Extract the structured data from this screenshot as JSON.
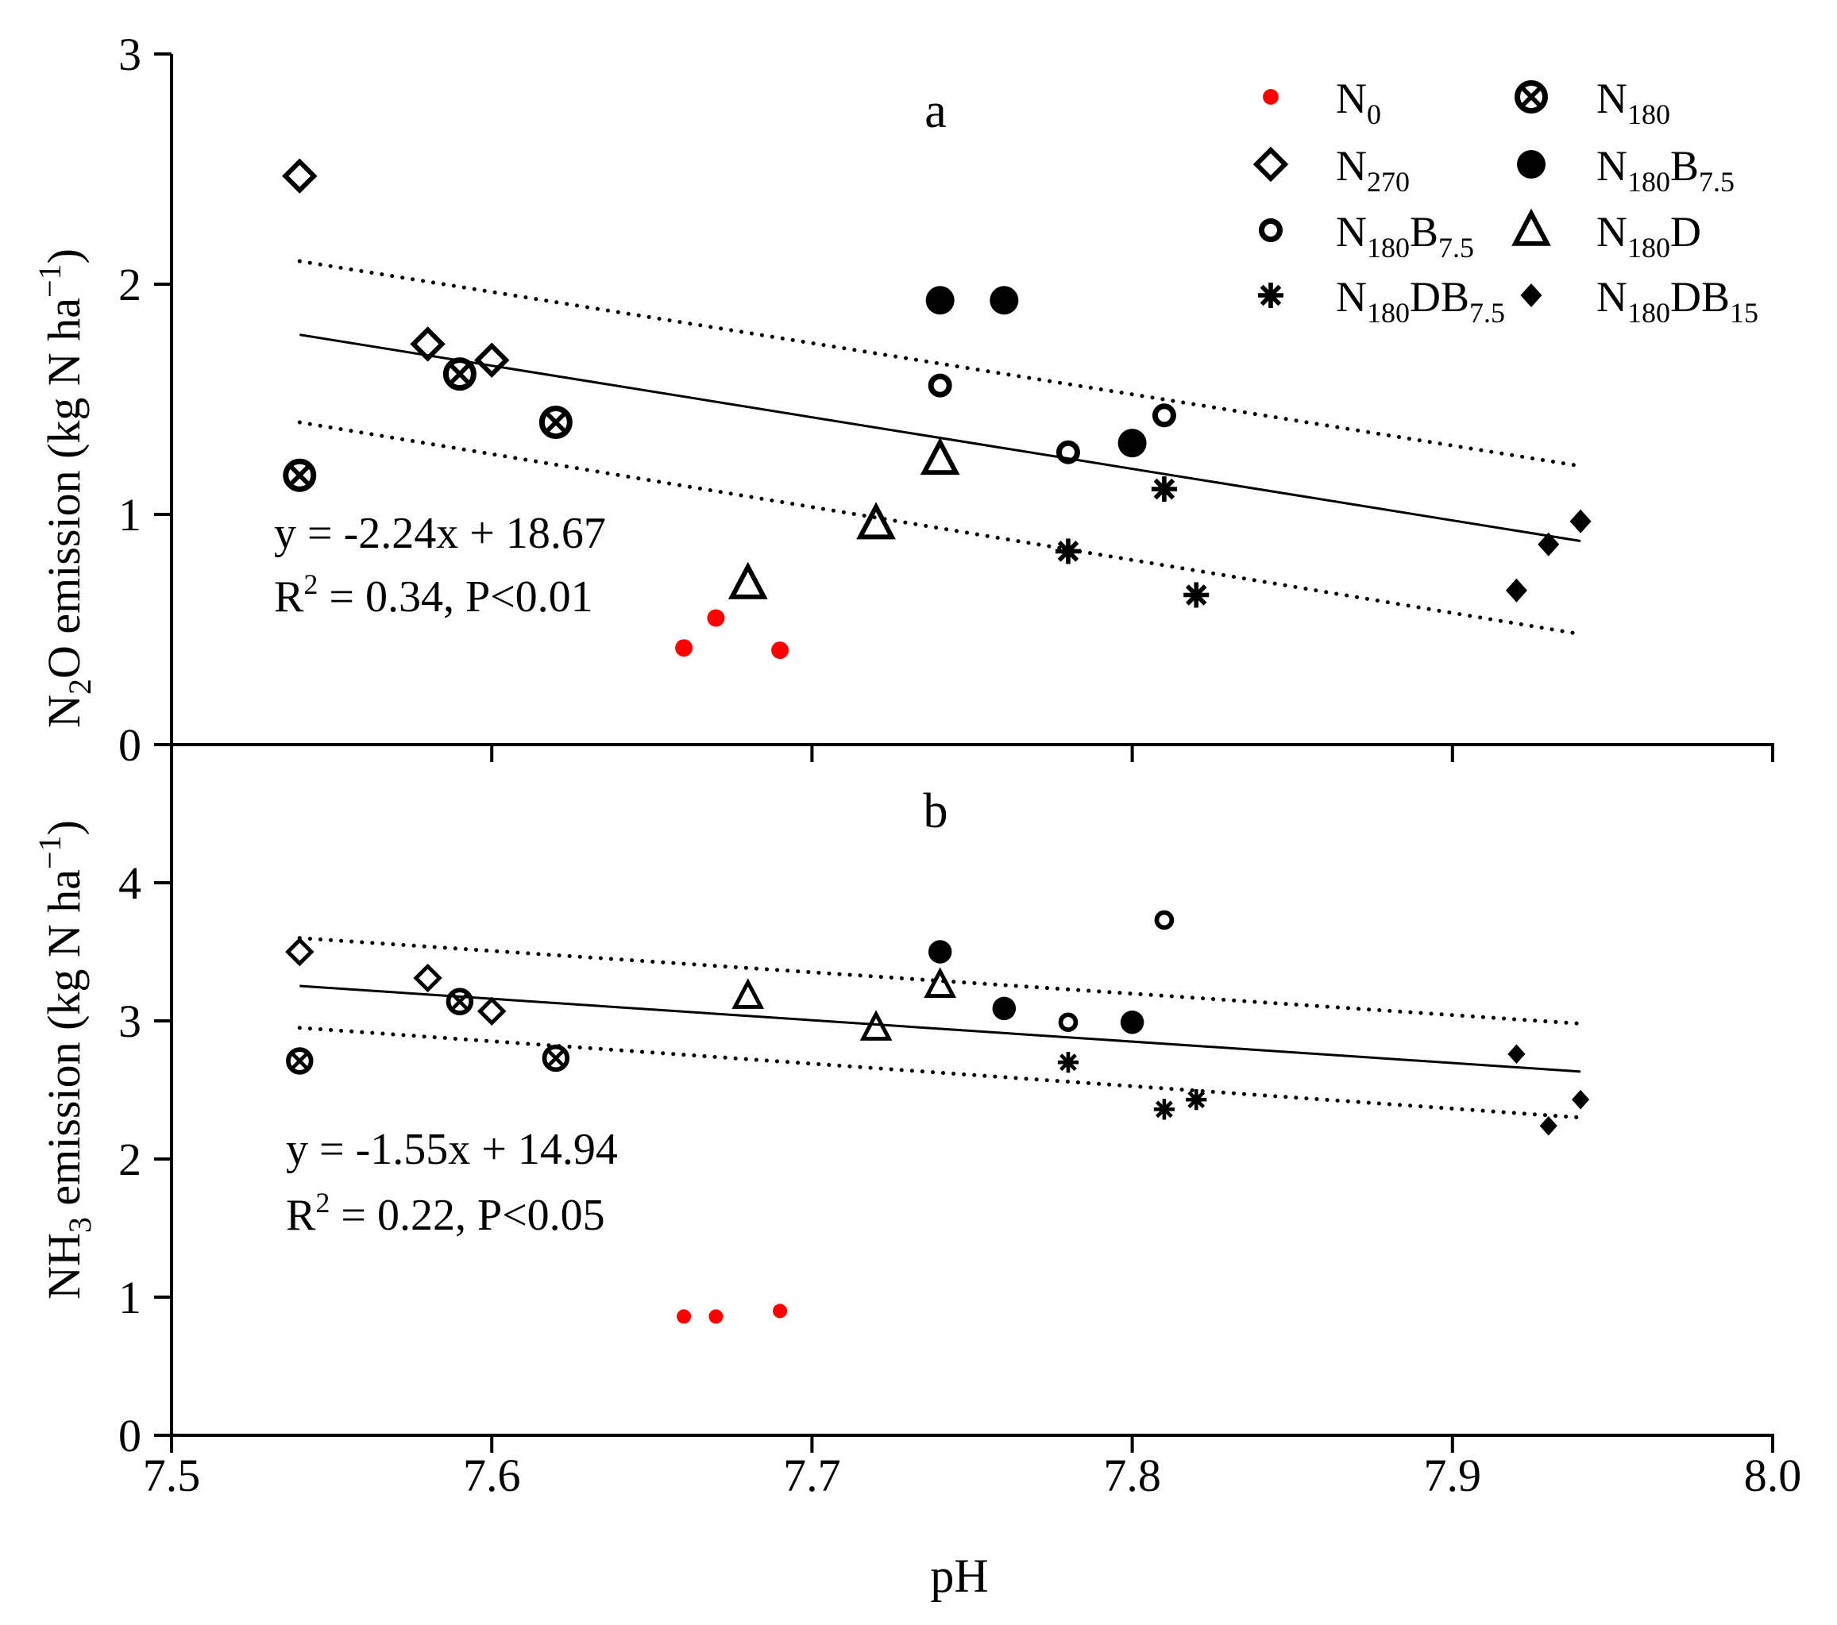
{
  "figure": {
    "xlabel": "pH",
    "x_ticks": [
      "7.5",
      "7.6",
      "7.7",
      "7.8",
      "7.9",
      "8.0"
    ]
  },
  "legend": {
    "entries": [
      {
        "key": "N0",
        "base": "N",
        "sub": "0",
        "base2": "",
        "sub2": "",
        "marker": "small-dot",
        "color": "#ff0000"
      },
      {
        "key": "N180",
        "base": "N",
        "sub": "180",
        "base2": "",
        "sub2": "",
        "marker": "circle-x",
        "color": "#000000"
      },
      {
        "key": "N270",
        "base": "N",
        "sub": "270",
        "base2": "",
        "sub2": "",
        "marker": "open-diamond",
        "color": "#000000"
      },
      {
        "key": "N180B7.5-filled",
        "base": "N",
        "sub": "180",
        "base2": "B",
        "sub2": "7.5",
        "marker": "filled-circle",
        "color": "#000000"
      },
      {
        "key": "N180B7.5-open",
        "base": "N",
        "sub": "180",
        "base2": "B",
        "sub2": "7.5",
        "marker": "open-circle",
        "color": "#000000"
      },
      {
        "key": "N180D",
        "base": "N",
        "sub": "180",
        "base2": "D",
        "sub2": "",
        "marker": "open-triangle",
        "color": "#000000"
      },
      {
        "key": "N180DB7.5",
        "base": "N",
        "sub": "180",
        "base2": "DB",
        "sub2": "7.5",
        "marker": "asterisk",
        "color": "#000000"
      },
      {
        "key": "N180DB15",
        "base": "N",
        "sub": "180",
        "base2": "DB",
        "sub2": "15",
        "marker": "filled-diamond",
        "color": "#000000"
      }
    ]
  },
  "chart_data": [
    {
      "panel_label": "a",
      "type": "scatter",
      "ylabel": {
        "pre": "N",
        "sub": "2",
        "mid": "O emission (kg N ha",
        "sup": "−1",
        "post": ")"
      },
      "xlim": [
        7.5,
        8.0
      ],
      "ylim": [
        0,
        3
      ],
      "y_ticks": [
        "0",
        "1",
        "2",
        "3"
      ],
      "equation": "y = -2.24x + 18.67",
      "stats": {
        "pre": "R",
        "sup": "2",
        "post": " = 0.34, P<0.01"
      },
      "regression": {
        "slope": -2.24,
        "intercept": 18.67,
        "x_range": [
          7.54,
          7.94
        ]
      },
      "confidence_band": {
        "upper": [
          [
            7.54,
            2.1
          ],
          [
            7.94,
            1.21
          ]
        ],
        "lower": [
          [
            7.54,
            1.4
          ],
          [
            7.94,
            0.48
          ]
        ]
      },
      "series": [
        {
          "name": "N0",
          "marker": "small-dot",
          "color": "#ff0000",
          "points": [
            [
              7.66,
              0.42
            ],
            [
              7.67,
              0.55
            ],
            [
              7.69,
              0.41
            ]
          ]
        },
        {
          "name": "N270",
          "marker": "open-diamond",
          "color": "#000000",
          "points": [
            [
              7.54,
              2.47
            ],
            [
              7.58,
              1.74
            ],
            [
              7.6,
              1.67
            ]
          ]
        },
        {
          "name": "N180",
          "marker": "circle-x",
          "color": "#000000",
          "points": [
            [
              7.54,
              1.17
            ],
            [
              7.59,
              1.61
            ],
            [
              7.62,
              1.4
            ]
          ]
        },
        {
          "name": "N180B7.5 (filled)",
          "marker": "filled-circle",
          "color": "#000000",
          "points": [
            [
              7.74,
              1.93
            ],
            [
              7.76,
              1.93
            ],
            [
              7.8,
              1.31
            ]
          ]
        },
        {
          "name": "N180B7.5 (open)",
          "marker": "open-circle",
          "color": "#000000",
          "points": [
            [
              7.74,
              1.56
            ],
            [
              7.78,
              1.27
            ],
            [
              7.81,
              1.43
            ]
          ]
        },
        {
          "name": "N180D",
          "marker": "open-triangle",
          "color": "#000000",
          "points": [
            [
              7.68,
              0.7
            ],
            [
              7.72,
              0.96
            ],
            [
              7.74,
              1.24
            ]
          ]
        },
        {
          "name": "N180DB7.5",
          "marker": "asterisk",
          "color": "#000000",
          "points": [
            [
              7.78,
              0.84
            ],
            [
              7.81,
              1.11
            ],
            [
              7.82,
              0.65
            ]
          ]
        },
        {
          "name": "N180DB15",
          "marker": "filled-diamond",
          "color": "#000000",
          "points": [
            [
              7.92,
              0.67
            ],
            [
              7.93,
              0.87
            ],
            [
              7.94,
              0.97
            ]
          ]
        }
      ]
    },
    {
      "panel_label": "b",
      "type": "scatter",
      "ylabel": {
        "pre": "NH",
        "sub": "3",
        "mid": " emission (kg N ha",
        "sup": "−1",
        "post": ")"
      },
      "xlim": [
        7.5,
        8.0
      ],
      "ylim": [
        0,
        5
      ],
      "y_ticks": [
        "0",
        "1",
        "2",
        "3",
        "4"
      ],
      "equation": "y = -1.55x + 14.94",
      "stats": {
        "pre": "R",
        "sup": "2",
        "post": " = 0.22, P<0.05"
      },
      "regression": {
        "slope": -1.55,
        "intercept": 14.94,
        "x_range": [
          7.54,
          7.94
        ]
      },
      "confidence_band": {
        "upper": [
          [
            7.54,
            3.6
          ],
          [
            7.94,
            2.98
          ]
        ],
        "lower": [
          [
            7.54,
            2.95
          ],
          [
            7.94,
            2.3
          ]
        ]
      },
      "series": [
        {
          "name": "N0",
          "marker": "small-dot",
          "color": "#ff0000",
          "points": [
            [
              7.66,
              0.86
            ],
            [
              7.67,
              0.86
            ],
            [
              7.69,
              0.9
            ]
          ]
        },
        {
          "name": "N270",
          "marker": "open-diamond",
          "color": "#000000",
          "points": [
            [
              7.54,
              3.5
            ],
            [
              7.58,
              3.31
            ],
            [
              7.6,
              3.07
            ]
          ]
        },
        {
          "name": "N180",
          "marker": "circle-x",
          "color": "#000000",
          "points": [
            [
              7.54,
              2.71
            ],
            [
              7.59,
              3.14
            ],
            [
              7.62,
              2.73
            ]
          ]
        },
        {
          "name": "N180B7.5 (filled)",
          "marker": "filled-circle",
          "color": "#000000",
          "points": [
            [
              7.74,
              3.5
            ],
            [
              7.76,
              3.09
            ],
            [
              7.8,
              2.99
            ]
          ]
        },
        {
          "name": "N180B7.5 (open)",
          "marker": "open-circle",
          "color": "#000000",
          "points": [
            [
              7.78,
              2.99
            ],
            [
              7.81,
              3.73
            ]
          ]
        },
        {
          "name": "N180D",
          "marker": "open-triangle",
          "color": "#000000",
          "points": [
            [
              7.68,
              3.18
            ],
            [
              7.72,
              2.95
            ],
            [
              7.74,
              3.26
            ]
          ]
        },
        {
          "name": "N180DB7.5",
          "marker": "asterisk",
          "color": "#000000",
          "points": [
            [
              7.78,
              2.7
            ],
            [
              7.81,
              2.36
            ],
            [
              7.82,
              2.43
            ]
          ]
        },
        {
          "name": "N180DB15",
          "marker": "filled-diamond",
          "color": "#000000",
          "points": [
            [
              7.92,
              2.76
            ],
            [
              7.93,
              2.24
            ],
            [
              7.94,
              2.43
            ]
          ]
        }
      ]
    }
  ]
}
